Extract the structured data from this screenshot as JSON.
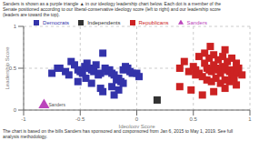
{
  "chart_data": {
    "type": "scatter",
    "title": "Sanders is shown as a purple triangle ▲ in our ideology leadership chart below. Each dot is a member of the\nSenate positioned according to our liberal-conservative ideology score (left to right) and our leadership score\n(leaders are toward the top).",
    "footer": [
      "The chart is based on the bills Sanders has sponsored and cosponsored from Jan 6, 2015 to May 1, 2019. See full",
      "analysis methodology."
    ],
    "xlabel": "Ideology Score",
    "ylabel": "Leadership Score",
    "xlim": [
      -1.0,
      1.0
    ],
    "xticks": [
      -1,
      -0.5,
      0,
      0.5,
      1
    ],
    "ylim": [
      0.0,
      1.0
    ],
    "yticks": [
      0,
      0.5,
      1
    ],
    "grid": true,
    "legend": "top",
    "annotations": [
      {
        "text": "Sanders",
        "x": -0.82,
        "y": 0.06
      }
    ],
    "series": [
      {
        "name": "Sanders",
        "color": "#bb44bb",
        "marker": "triangle",
        "values": [
          [
            -0.82,
            0.06
          ]
        ]
      },
      {
        "name": "Democrats",
        "color": "#3333aa",
        "marker": "square",
        "values": [
          [
            -0.75,
            0.44
          ],
          [
            -0.7,
            0.5
          ],
          [
            -0.68,
            0.5
          ],
          [
            -0.63,
            0.46
          ],
          [
            -0.6,
            0.42
          ],
          [
            -0.58,
            0.58
          ],
          [
            -0.55,
            0.54
          ],
          [
            -0.52,
            0.48
          ],
          [
            -0.5,
            0.46
          ],
          [
            -0.48,
            0.44
          ],
          [
            -0.46,
            0.52
          ],
          [
            -0.44,
            0.56
          ],
          [
            -0.42,
            0.5
          ],
          [
            -0.4,
            0.48
          ],
          [
            -0.38,
            0.46
          ],
          [
            -0.36,
            0.54
          ],
          [
            -0.34,
            0.42
          ],
          [
            -0.32,
            0.44
          ],
          [
            -0.3,
            0.68
          ],
          [
            -0.28,
            0.5
          ],
          [
            -0.26,
            0.46
          ],
          [
            -0.24,
            0.48
          ],
          [
            -0.22,
            0.44
          ],
          [
            -0.2,
            0.42
          ],
          [
            -0.18,
            0.36
          ],
          [
            -0.16,
            0.38
          ],
          [
            -0.14,
            0.34
          ],
          [
            -0.12,
            0.48
          ],
          [
            -0.1,
            0.52
          ],
          [
            -0.08,
            0.5
          ],
          [
            -0.06,
            0.46
          ],
          [
            -0.04,
            0.44
          ],
          [
            0.0,
            0.44
          ],
          [
            0.02,
            0.4
          ],
          [
            -0.52,
            0.34
          ],
          [
            -0.4,
            0.32
          ],
          [
            -0.32,
            0.26
          ],
          [
            -0.22,
            0.28
          ],
          [
            -0.3,
            0.22
          ],
          [
            -0.16,
            0.24
          ],
          [
            -0.12,
            0.32
          ],
          [
            -0.2,
            0.18
          ],
          [
            -0.45,
            0.38
          ]
        ]
      },
      {
        "name": "Independents",
        "color": "#333333",
        "marker": "square",
        "values": [
          [
            0.18,
            0.12
          ]
        ]
      },
      {
        "name": "Republicans",
        "color": "#cc2222",
        "marker": "square",
        "values": [
          [
            0.38,
            0.5
          ],
          [
            0.42,
            0.58
          ],
          [
            0.46,
            0.46
          ],
          [
            0.5,
            0.52
          ],
          [
            0.52,
            0.48
          ],
          [
            0.55,
            0.44
          ],
          [
            0.58,
            0.4
          ],
          [
            0.6,
            0.56
          ],
          [
            0.62,
            0.5
          ],
          [
            0.64,
            0.48
          ],
          [
            0.66,
            0.46
          ],
          [
            0.68,
            0.54
          ],
          [
            0.7,
            0.5
          ],
          [
            0.72,
            0.48
          ],
          [
            0.74,
            0.44
          ],
          [
            0.76,
            0.52
          ],
          [
            0.78,
            0.5
          ],
          [
            0.8,
            0.48
          ],
          [
            0.82,
            0.46
          ],
          [
            0.84,
            0.42
          ],
          [
            0.86,
            0.48
          ],
          [
            0.88,
            0.44
          ],
          [
            0.62,
            0.36
          ],
          [
            0.66,
            0.34
          ],
          [
            0.7,
            0.38
          ],
          [
            0.74,
            0.32
          ],
          [
            0.78,
            0.36
          ],
          [
            0.82,
            0.34
          ],
          [
            0.86,
            0.38
          ],
          [
            0.55,
            0.64
          ],
          [
            0.6,
            0.68
          ],
          [
            0.64,
            0.62
          ],
          [
            0.68,
            0.66
          ],
          [
            0.72,
            0.6
          ],
          [
            0.76,
            0.64
          ],
          [
            0.8,
            0.58
          ],
          [
            0.84,
            0.62
          ],
          [
            0.88,
            0.56
          ],
          [
            0.38,
            0.28
          ],
          [
            0.48,
            0.24
          ],
          [
            0.58,
            0.18
          ],
          [
            0.68,
            0.22
          ],
          [
            0.78,
            0.26
          ],
          [
            0.88,
            0.3
          ],
          [
            0.93,
            0.42
          ],
          [
            0.9,
            0.5
          ],
          [
            0.52,
            0.42
          ],
          [
            0.78,
            0.72
          ],
          [
            0.65,
            0.76
          ]
        ]
      }
    ]
  }
}
